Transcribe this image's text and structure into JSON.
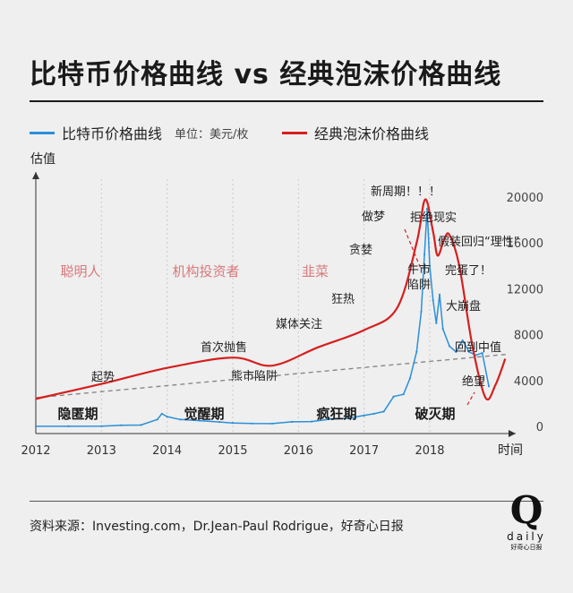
{
  "title": "比特币价格曲线 vs 经典泡沫价格曲线",
  "legend": {
    "bitcoin": "比特币价格曲线",
    "unit": "单位：美元/枚",
    "bubble": "经典泡沫价格曲线"
  },
  "source": "资料来源：Investing.com，Dr.Jean-Paul Rodrigue，好奇心日报",
  "logo": {
    "mark": "Q",
    "word": "daily",
    "cn": "好奇心日报"
  },
  "colors": {
    "bitcoin": "#2b8fd9",
    "bubble": "#d61f1f",
    "trend": "#888888",
    "phase_label": "#d9787a"
  },
  "chart_data": {
    "type": "line",
    "ylabel": "估值",
    "xlabel": "时间",
    "x_ticks": [
      "2012",
      "2013",
      "2014",
      "2015",
      "2016",
      "2017",
      "2018"
    ],
    "y_ticks": [
      0,
      4000,
      8000,
      12000,
      16000,
      20000
    ],
    "ylim": [
      0,
      20000
    ],
    "xlim": [
      2012.0,
      2019.2
    ],
    "grid": "vertical dotted",
    "series": [
      {
        "name": "比特币价格曲线",
        "x": [
          2012.0,
          2012.5,
          2013.0,
          2013.3,
          2013.6,
          2013.85,
          2013.92,
          2014.0,
          2014.2,
          2014.5,
          2014.8,
          2015.0,
          2015.3,
          2015.6,
          2015.9,
          2016.2,
          2016.5,
          2016.75,
          2017.0,
          2017.15,
          2017.3,
          2017.45,
          2017.6,
          2017.7,
          2017.8,
          2017.87,
          2017.92,
          2017.96,
          2018.0,
          2018.05,
          2018.1,
          2018.15,
          2018.2,
          2018.3,
          2018.4,
          2018.5,
          2018.6,
          2018.7,
          2018.8,
          2018.9
        ],
        "values": [
          6,
          8,
          13,
          100,
          120,
          600,
          1100,
          850,
          600,
          500,
          380,
          300,
          250,
          240,
          400,
          420,
          650,
          700,
          950,
          1100,
          1300,
          2600,
          2800,
          4200,
          6500,
          10000,
          15000,
          19000,
          14000,
          11000,
          9000,
          11500,
          8500,
          7000,
          6500,
          7500,
          6500,
          6200,
          6400,
          3500
        ]
      },
      {
        "name": "经典泡沫价格曲线",
        "x": [
          2012.0,
          2013.0,
          2014.0,
          2015.0,
          2015.6,
          2016.3,
          2017.0,
          2017.5,
          2017.8,
          2017.93,
          2018.05,
          2018.12,
          2018.22,
          2018.3,
          2018.45,
          2018.65,
          2018.85,
          2019.0,
          2019.15
        ],
        "values": [
          2400,
          3700,
          5100,
          6000,
          5300,
          6900,
          8400,
          10300,
          16000,
          19800,
          17000,
          14900,
          16300,
          16700,
          14000,
          7000,
          2500,
          3600,
          5900
        ]
      }
    ],
    "trend_line": {
      "from": [
        2012.0,
        2500
      ],
      "to": [
        2019.2,
        6300
      ]
    },
    "phases": [
      "聪明人",
      "机构投资者",
      "韭菜"
    ],
    "periods": [
      "隐匿期",
      "觉醒期",
      "疯狂期",
      "破灭期"
    ],
    "annotations": [
      "起势",
      "首次抛售",
      "熊市陷阱",
      "媒体关注",
      "狂热",
      "贪婪",
      "做梦",
      "新周期！！！",
      "拒绝现实",
      "假装回归“理性”",
      "牛市陷阱",
      "完蛋了！",
      "大崩盘",
      "回到中值",
      "绝望"
    ]
  }
}
